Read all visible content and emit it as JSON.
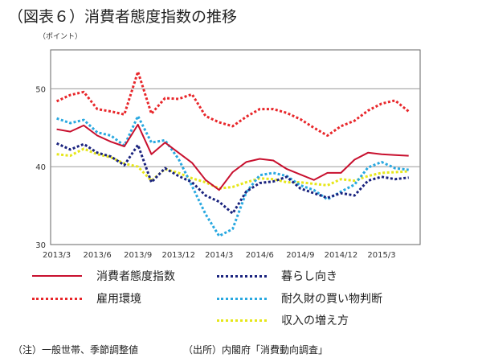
{
  "title": "（図表６）消費者態度指数の推移",
  "unit": "（ポイント）",
  "note": "（注）一般世帯、季節調整値",
  "source": "（出所）内閣府「消費動向調査」",
  "chart_data": {
    "type": "line",
    "title": "（図表６）消費者態度指数の推移",
    "ylabel": "（ポイント）",
    "xlabel": "",
    "ylim": [
      30,
      55
    ],
    "yticks": [
      30,
      40,
      50
    ],
    "grid": "horizontal",
    "legend_position": "bottom",
    "x": [
      "2013/3",
      "2013/4",
      "2013/5",
      "2013/6",
      "2013/7",
      "2013/8",
      "2013/9",
      "2013/10",
      "2013/11",
      "2013/12",
      "2014/1",
      "2014/2",
      "2014/3",
      "2014/4",
      "2014/5",
      "2014/6",
      "2014/7",
      "2014/8",
      "2014/9",
      "2014/10",
      "2014/11",
      "2014/12",
      "2015/1",
      "2015/2",
      "2015/3",
      "2015/4",
      "2015/5"
    ],
    "xtick_labels": [
      "2013/3",
      "2013/6",
      "2013/9",
      "2013/12",
      "2014/3",
      "2014/6",
      "2014/9",
      "2014/12",
      "2015/3"
    ],
    "xtick_indices": [
      0,
      3,
      6,
      9,
      12,
      15,
      18,
      21,
      24
    ],
    "series": [
      {
        "name": "消費者態度指数",
        "color": "#c8102e",
        "style": "solid",
        "values": [
          44.8,
          44.5,
          45.3,
          44.0,
          43.2,
          42.6,
          45.4,
          41.6,
          43.1,
          41.8,
          40.5,
          38.3,
          37.0,
          39.3,
          40.6,
          41.0,
          40.8,
          39.7,
          39.0,
          38.3,
          39.2,
          39.2,
          40.9,
          41.8,
          41.6,
          41.5,
          41.4
        ]
      },
      {
        "name": "雇用環境",
        "color": "#e8262a",
        "style": "dotted",
        "values": [
          48.4,
          49.2,
          49.6,
          47.4,
          47.1,
          46.7,
          52.2,
          46.8,
          48.8,
          48.7,
          49.3,
          46.5,
          45.7,
          45.2,
          46.4,
          47.4,
          47.4,
          46.9,
          46.1,
          45.0,
          44.0,
          45.2,
          45.9,
          47.2,
          48.1,
          48.5,
          47.1
        ]
      },
      {
        "name": "暮らし向き",
        "color": "#1a237e",
        "style": "dotted",
        "values": [
          43.0,
          42.2,
          42.9,
          41.8,
          41.3,
          40.2,
          42.8,
          38.0,
          39.8,
          38.8,
          38.0,
          36.3,
          35.5,
          34.0,
          36.8,
          37.9,
          38.1,
          38.7,
          37.2,
          36.6,
          36.0,
          36.6,
          36.3,
          38.2,
          38.7,
          38.4,
          38.6
        ]
      },
      {
        "name": "耐久財の買い物判断",
        "color": "#29a8e0",
        "style": "dotted",
        "values": [
          46.2,
          45.6,
          46.0,
          44.4,
          44.0,
          42.7,
          46.5,
          43.1,
          43.4,
          41.0,
          37.5,
          33.9,
          31.1,
          32.0,
          36.7,
          38.9,
          39.2,
          38.8,
          37.6,
          37.0,
          35.8,
          36.8,
          37.7,
          39.9,
          40.6,
          39.8,
          39.6
        ]
      },
      {
        "name": "収入の増え方",
        "color": "#e6e619",
        "style": "dotted",
        "values": [
          41.6,
          41.4,
          42.3,
          41.6,
          41.2,
          40.4,
          40.0,
          38.2,
          39.7,
          39.2,
          38.5,
          38.0,
          37.2,
          37.4,
          38.0,
          38.5,
          38.4,
          38.0,
          38.0,
          37.8,
          37.6,
          38.4,
          38.2,
          38.8,
          39.2,
          39.3,
          39.4
        ]
      }
    ]
  }
}
